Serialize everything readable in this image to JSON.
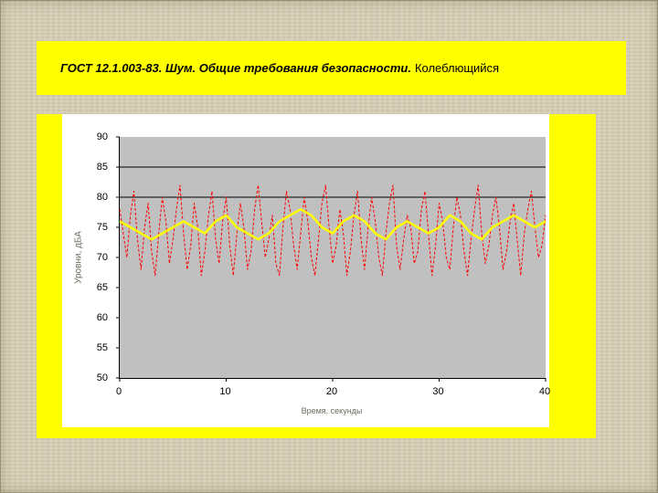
{
  "slide": {
    "title_main": "ГОСТ 12.1.003-83. Шум. Общие требования безопасности.",
    "title_suffix": "Колеблющийся"
  },
  "colors": {
    "slide_background": "#d7cfb6",
    "header_background": "#ffff00",
    "panel_background": "#ffff00",
    "chart_background": "#ffffff",
    "plot_background": "#c0c0c0",
    "series_instant": "#ff0000",
    "series_smoothed": "#ffff00",
    "reference_line": "#000000"
  },
  "chart_data": {
    "type": "line",
    "title": "",
    "xlabel": "Время, секунды",
    "ylabel": "Уровни, дБА",
    "xlim": [
      0,
      40
    ],
    "ylim": [
      50,
      90
    ],
    "xticks": [
      0,
      10,
      20,
      30,
      40
    ],
    "yticks": [
      90,
      85,
      80,
      75,
      70,
      65,
      60,
      55,
      50
    ],
    "grid": false,
    "legend": "none",
    "reference_lines": [
      85,
      80
    ],
    "series": [
      {
        "name": "fluctuating-noise-level-instant",
        "color": "#ff0000",
        "style": "dashed",
        "width": 1,
        "values": [
          78,
          74,
          70,
          77,
          81,
          73,
          68,
          75,
          79,
          71,
          67,
          74,
          80,
          76,
          69,
          73,
          78,
          82,
          74,
          68,
          72,
          79,
          75,
          67,
          71,
          77,
          81,
          73,
          69,
          76,
          80,
          72,
          67,
          74,
          79,
          75,
          68,
          71,
          78,
          82,
          76,
          70,
          73,
          77,
          69,
          67,
          75,
          81,
          78,
          72,
          68,
          74,
          80,
          76,
          70,
          67,
          73,
          79,
          82,
          75,
          69,
          72,
          78,
          74,
          67,
          71,
          77,
          81,
          73,
          68,
          75,
          80,
          76,
          70,
          67,
          74,
          79,
          82,
          72,
          68,
          73,
          77,
          75,
          69,
          71,
          78,
          81,
          74,
          67,
          72,
          79,
          76,
          70,
          68,
          75,
          80,
          77,
          71,
          67,
          73,
          78,
          82,
          74,
          69,
          72,
          77,
          80,
          75,
          68,
          71,
          76,
          79,
          73,
          67,
          74,
          78,
          81,
          75,
          70,
          72,
          77
        ]
      },
      {
        "name": "noise-level-smoothed",
        "color": "#ffff00",
        "style": "solid",
        "width": 2.5,
        "values": [
          76,
          75,
          74,
          73,
          74,
          75,
          76,
          75,
          74,
          76,
          77,
          75,
          74,
          73,
          74,
          76,
          77,
          78,
          77,
          75,
          74,
          76,
          77,
          76,
          74,
          73,
          75,
          76,
          75,
          74,
          75,
          77,
          76,
          74,
          73,
          75,
          76,
          77,
          76,
          75,
          76
        ]
      }
    ]
  }
}
